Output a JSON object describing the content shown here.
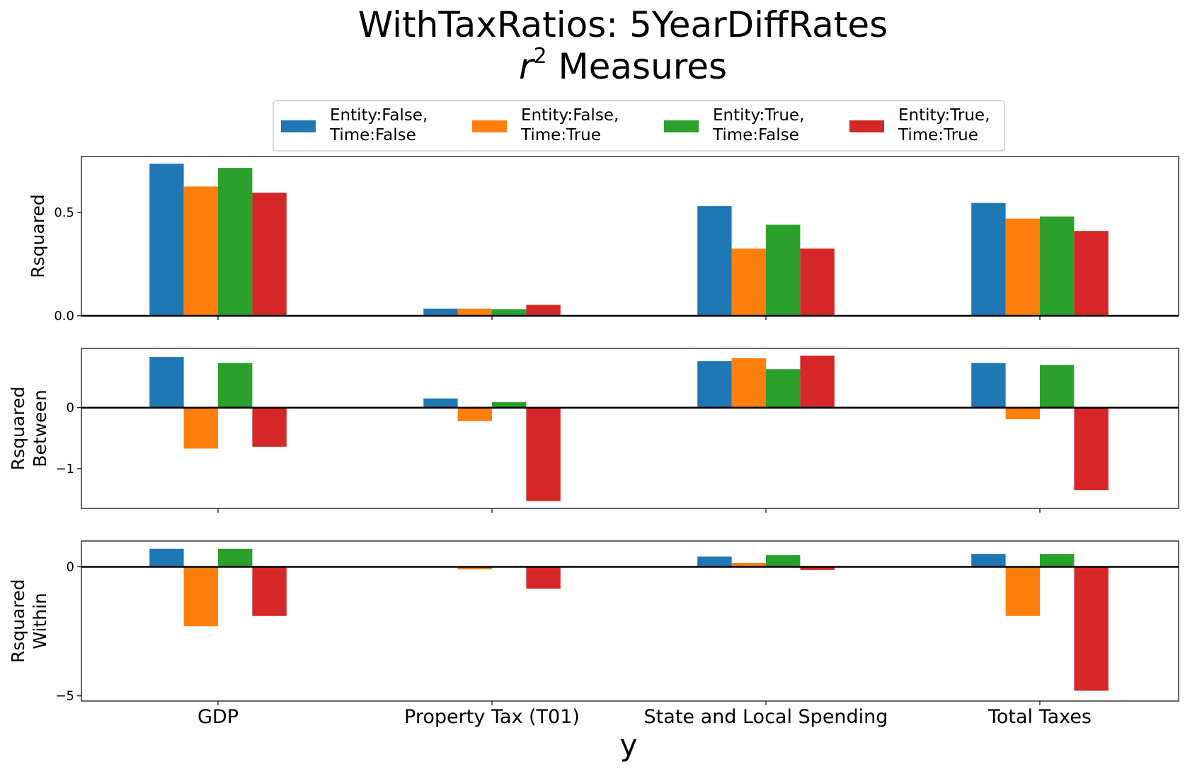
{
  "figure": {
    "title_line1": "WithTaxRatios: 5YearDiffRates",
    "title_line2_var": "r",
    "title_line2_sup": "2",
    "title_line2_rest": " Measures",
    "xlabel": "y"
  },
  "colors": {
    "series": [
      "#1f77b4",
      "#ff7f0e",
      "#2ca02c",
      "#d62728"
    ],
    "axis": "#000000",
    "background": "#ffffff"
  },
  "legend": {
    "placement": "top-center",
    "columns": 4,
    "entries": [
      {
        "line1": "Entity:False,",
        "line2": "Time:False"
      },
      {
        "line1": "Entity:False,",
        "line2": "Time:True"
      },
      {
        "line1": "Entity:True,",
        "line2": "Time:False"
      },
      {
        "line1": "Entity:True,",
        "line2": "Time:True"
      }
    ]
  },
  "chart_data": [
    {
      "type": "bar",
      "ylabel": [
        "Rsquared"
      ],
      "categories": [
        "GDP",
        "Property Tax (T01)",
        "State and Local Spending",
        "Total Taxes"
      ],
      "ylim": [
        0,
        0.77
      ],
      "yticks": [
        0.0,
        0.5
      ],
      "ytick_labels": [
        "0.0",
        "0.5"
      ],
      "grid": false,
      "series": [
        {
          "name": "Entity:False, Time:False",
          "values": [
            0.735,
            0.035,
            0.53,
            0.545
          ]
        },
        {
          "name": "Entity:False, Time:True",
          "values": [
            0.625,
            0.035,
            0.325,
            0.47
          ]
        },
        {
          "name": "Entity:True, Time:False",
          "values": [
            0.715,
            0.032,
            0.44,
            0.48
          ]
        },
        {
          "name": "Entity:True, Time:True",
          "values": [
            0.595,
            0.053,
            0.325,
            0.41
          ]
        }
      ]
    },
    {
      "type": "bar",
      "ylabel": [
        "Rsquared",
        "Between"
      ],
      "categories": [
        "GDP",
        "Property Tax (T01)",
        "State and Local Spending",
        "Total Taxes"
      ],
      "ylim": [
        -1.65,
        0.97
      ],
      "yticks": [
        -1,
        0
      ],
      "ytick_labels": [
        "−1",
        "0"
      ],
      "grid": false,
      "series": [
        {
          "name": "Entity:False, Time:False",
          "values": [
            0.83,
            0.15,
            0.76,
            0.73
          ]
        },
        {
          "name": "Entity:False, Time:True",
          "values": [
            -0.67,
            -0.22,
            0.81,
            -0.19
          ]
        },
        {
          "name": "Entity:True, Time:False",
          "values": [
            0.73,
            0.09,
            0.63,
            0.7
          ]
        },
        {
          "name": "Entity:True, Time:True",
          "values": [
            -0.64,
            -1.53,
            0.85,
            -1.35
          ]
        }
      ]
    },
    {
      "type": "bar",
      "ylabel": [
        "Rsquared",
        "Within"
      ],
      "categories": [
        "GDP",
        "Property Tax (T01)",
        "State and Local Spending",
        "Total Taxes"
      ],
      "ylim": [
        -5.2,
        1.0
      ],
      "yticks": [
        -5,
        0
      ],
      "ytick_labels": [
        "−5",
        "0"
      ],
      "grid": false,
      "series": [
        {
          "name": "Entity:False, Time:False",
          "values": [
            0.7,
            0.0,
            0.4,
            0.5
          ]
        },
        {
          "name": "Entity:False, Time:True",
          "values": [
            -2.3,
            -0.1,
            0.15,
            -1.9
          ]
        },
        {
          "name": "Entity:True, Time:False",
          "values": [
            0.7,
            0.0,
            0.45,
            0.5
          ]
        },
        {
          "name": "Entity:True, Time:True",
          "values": [
            -1.9,
            -0.85,
            -0.12,
            -4.8
          ]
        }
      ]
    }
  ]
}
